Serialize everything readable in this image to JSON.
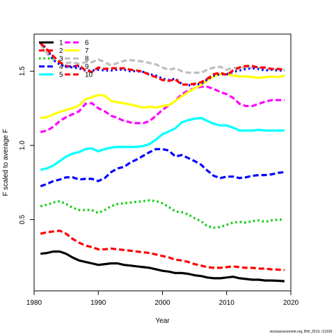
{
  "chart_data": {
    "type": "line",
    "title": "",
    "xlabel": "Year",
    "ylabel": "F scaled to average F",
    "xlim": [
      1980,
      2020
    ],
    "ylim": [
      0.02,
      1.75
    ],
    "x_ticks": [
      1980,
      1990,
      2000,
      2010,
      2020
    ],
    "y_ticks": [
      0.5,
      1.0,
      1.5
    ],
    "legend_position": "top-left",
    "grid": false,
    "x": [
      1981,
      1982,
      1983,
      1984,
      1985,
      1986,
      1987,
      1988,
      1989,
      1990,
      1991,
      1992,
      1993,
      1994,
      1995,
      1996,
      1997,
      1998,
      1999,
      2000,
      2001,
      2002,
      2003,
      2004,
      2005,
      2006,
      2007,
      2008,
      2009,
      2010,
      2011,
      2012,
      2013,
      2014,
      2015,
      2016,
      2017,
      2018,
      2019
    ],
    "series": [
      {
        "name": "1",
        "color": "#000000",
        "dash": "solid",
        "values": [
          0.27,
          0.275,
          0.285,
          0.285,
          0.27,
          0.245,
          0.225,
          0.215,
          0.205,
          0.195,
          0.2,
          0.205,
          0.205,
          0.195,
          0.19,
          0.185,
          0.18,
          0.175,
          0.165,
          0.155,
          0.15,
          0.14,
          0.14,
          0.135,
          0.125,
          0.12,
          0.11,
          0.105,
          0.105,
          0.11,
          0.115,
          0.105,
          0.1,
          0.095,
          0.095,
          0.09,
          0.09,
          0.088,
          0.085
        ]
      },
      {
        "name": "2",
        "color": "#ff0000",
        "dash": "dashed",
        "values": [
          0.405,
          0.415,
          0.42,
          0.425,
          0.405,
          0.37,
          0.345,
          0.325,
          0.315,
          0.3,
          0.3,
          0.305,
          0.3,
          0.295,
          0.29,
          0.285,
          0.28,
          0.275,
          0.265,
          0.255,
          0.245,
          0.23,
          0.225,
          0.215,
          0.2,
          0.19,
          0.18,
          0.175,
          0.175,
          0.18,
          0.185,
          0.18,
          0.175,
          0.175,
          0.17,
          0.17,
          0.165,
          0.163,
          0.16
        ]
      },
      {
        "name": "3",
        "color": "#00cd00",
        "dash": "dotted",
        "values": [
          0.59,
          0.6,
          0.615,
          0.625,
          0.605,
          0.58,
          0.565,
          0.565,
          0.565,
          0.545,
          0.565,
          0.59,
          0.605,
          0.61,
          0.615,
          0.62,
          0.625,
          0.63,
          0.625,
          0.61,
          0.585,
          0.555,
          0.55,
          0.535,
          0.51,
          0.49,
          0.455,
          0.445,
          0.45,
          0.465,
          0.48,
          0.485,
          0.48,
          0.49,
          0.495,
          0.485,
          0.495,
          0.5,
          0.5
        ]
      },
      {
        "name": "4",
        "color": "#0000ff",
        "dash": "dashed",
        "values": [
          0.725,
          0.74,
          0.76,
          0.77,
          0.785,
          0.785,
          0.77,
          0.775,
          0.775,
          0.76,
          0.78,
          0.82,
          0.845,
          0.855,
          0.885,
          0.905,
          0.93,
          0.955,
          0.975,
          0.975,
          0.965,
          0.925,
          0.935,
          0.915,
          0.895,
          0.87,
          0.83,
          0.795,
          0.78,
          0.79,
          0.79,
          0.78,
          0.785,
          0.795,
          0.8,
          0.8,
          0.805,
          0.815,
          0.82
        ]
      },
      {
        "name": "5",
        "color": "#00ffff",
        "dash": "solid",
        "values": [
          0.835,
          0.845,
          0.865,
          0.895,
          0.925,
          0.945,
          0.955,
          0.975,
          0.98,
          0.96,
          0.975,
          0.985,
          0.99,
          0.99,
          0.99,
          0.99,
          0.995,
          1.01,
          1.04,
          1.075,
          1.095,
          1.115,
          1.155,
          1.17,
          1.18,
          1.185,
          1.165,
          1.145,
          1.135,
          1.135,
          1.12,
          1.1,
          1.1,
          1.1,
          1.105,
          1.1,
          1.1,
          1.1,
          1.1
        ]
      },
      {
        "name": "6",
        "color": "#ff00ff",
        "dash": "dashed",
        "values": [
          1.09,
          1.1,
          1.125,
          1.165,
          1.19,
          1.21,
          1.23,
          1.28,
          1.285,
          1.25,
          1.23,
          1.2,
          1.185,
          1.165,
          1.155,
          1.15,
          1.15,
          1.165,
          1.2,
          1.24,
          1.27,
          1.3,
          1.345,
          1.37,
          1.385,
          1.395,
          1.395,
          1.38,
          1.36,
          1.345,
          1.32,
          1.28,
          1.265,
          1.265,
          1.28,
          1.295,
          1.305,
          1.305,
          1.305
        ]
      },
      {
        "name": "7",
        "color": "#ffff00",
        "dash": "solid",
        "values": [
          1.185,
          1.19,
          1.21,
          1.225,
          1.24,
          1.25,
          1.27,
          1.31,
          1.325,
          1.34,
          1.335,
          1.3,
          1.29,
          1.285,
          1.275,
          1.265,
          1.255,
          1.26,
          1.255,
          1.265,
          1.27,
          1.3,
          1.33,
          1.36,
          1.385,
          1.405,
          1.44,
          1.465,
          1.48,
          1.48,
          1.47,
          1.465,
          1.465,
          1.46,
          1.455,
          1.46,
          1.465,
          1.46,
          1.47
        ]
      },
      {
        "name": "8",
        "color": "#bebebe",
        "dash": "dashed",
        "values": [
          1.68,
          1.62,
          1.575,
          1.555,
          1.555,
          1.56,
          1.55,
          1.56,
          1.56,
          1.58,
          1.56,
          1.54,
          1.555,
          1.57,
          1.575,
          1.57,
          1.565,
          1.555,
          1.545,
          1.525,
          1.51,
          1.52,
          1.5,
          1.49,
          1.49,
          1.49,
          1.51,
          1.525,
          1.53,
          1.51,
          1.52,
          1.525,
          1.525,
          1.525,
          1.525,
          1.515,
          1.515,
          1.515,
          1.51
        ]
      },
      {
        "name": "9",
        "color": "#0000ff",
        "dash": "dotted",
        "values": [
          1.69,
          1.65,
          1.575,
          1.545,
          1.53,
          1.525,
          1.52,
          1.505,
          1.505,
          1.51,
          1.505,
          1.505,
          1.51,
          1.51,
          1.5,
          1.5,
          1.495,
          1.48,
          1.47,
          1.45,
          1.44,
          1.45,
          1.415,
          1.405,
          1.41,
          1.415,
          1.445,
          1.47,
          1.48,
          1.48,
          1.495,
          1.505,
          1.515,
          1.52,
          1.515,
          1.505,
          1.51,
          1.505,
          1.505
        ]
      },
      {
        "name": "10",
        "color": "#ff0000",
        "dash": "dashed",
        "values": [
          1.69,
          1.645,
          1.6,
          1.56,
          1.535,
          1.53,
          1.54,
          1.505,
          1.495,
          1.525,
          1.515,
          1.52,
          1.52,
          1.52,
          1.51,
          1.505,
          1.495,
          1.475,
          1.46,
          1.44,
          1.435,
          1.445,
          1.41,
          1.41,
          1.415,
          1.425,
          1.45,
          1.48,
          1.49,
          1.475,
          1.505,
          1.525,
          1.535,
          1.535,
          1.525,
          1.525,
          1.515,
          1.515,
          1.51
        ]
      }
    ]
  },
  "footer_note": "stockassessment.org, BW_2019, r11339"
}
